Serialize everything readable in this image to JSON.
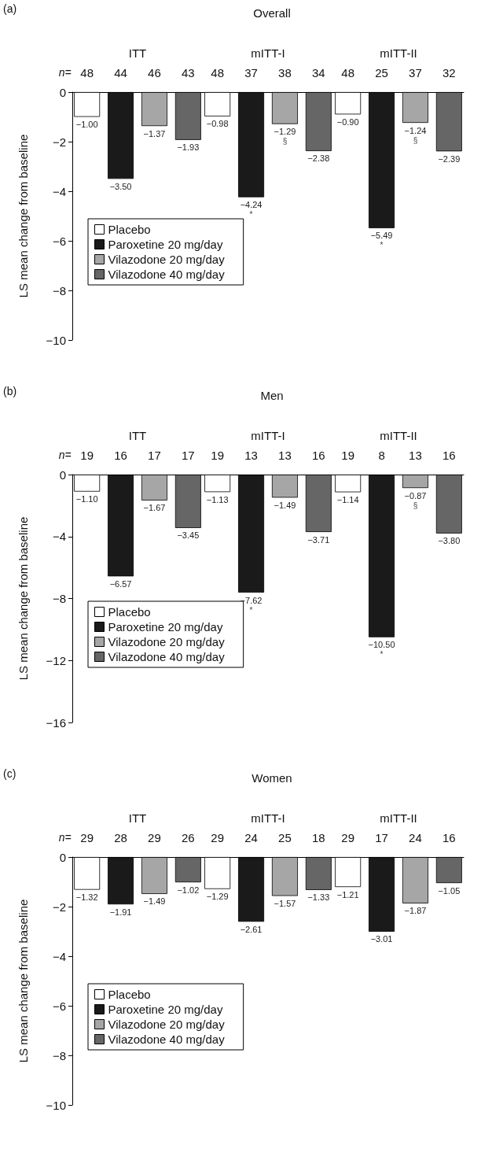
{
  "chart_data": [
    {
      "type": "bar",
      "title": "Overall",
      "ylabel": "LS mean change from baseline",
      "categories": [
        "ITT",
        "mITT-I",
        "mITT-II"
      ],
      "series": [
        {
          "name": "Placebo",
          "color": "#ffffff",
          "values": [
            -1.0,
            -0.98,
            -0.9
          ],
          "value_labels": [
            "−1.00",
            "−0.98",
            "−0.90"
          ]
        },
        {
          "name": "Paroxetine 20 mg/day",
          "color": "#1a1a1a",
          "values": [
            -3.5,
            -4.24,
            -5.49
          ],
          "value_labels": [
            "−3.50",
            "−4.24",
            "−5.49"
          ]
        },
        {
          "name": "Vilazodone 20 mg/day",
          "color": "#a6a6a6",
          "values": [
            -1.37,
            -1.29,
            -1.24
          ],
          "value_labels": [
            "−1.37",
            "−1.29",
            "−1.24"
          ]
        },
        {
          "name": "Vilazodone 40 mg/day",
          "color": "#666666",
          "values": [
            -1.93,
            -2.38,
            -2.39
          ],
          "value_labels": [
            "−1.93",
            "−2.38",
            "−2.39"
          ]
        }
      ],
      "ylim": [
        -10,
        0
      ],
      "yticks": [
        {
          "value": 0,
          "label": "0"
        },
        {
          "value": -2,
          "label": "−2"
        },
        {
          "value": -4,
          "label": "−4"
        },
        {
          "value": -6,
          "label": "−6"
        },
        {
          "value": -8,
          "label": "−8"
        },
        {
          "value": -10,
          "label": "−10"
        }
      ],
      "grid": false,
      "legend": "bottom left",
      "annotations": [
        "(a)",
        "n=",
        "48",
        "44",
        "46",
        "43",
        "48",
        "37",
        "38",
        "34",
        "48",
        "25",
        "37",
        "32",
        "*",
        "§",
        "*",
        "§"
      ]
    },
    {
      "type": "bar",
      "title": "Men",
      "ylabel": "LS mean change from baseline",
      "categories": [
        "ITT",
        "mITT-I",
        "mITT-II"
      ],
      "series": [
        {
          "name": "Placebo",
          "color": "#ffffff",
          "values": [
            -1.1,
            -1.13,
            -1.14
          ],
          "value_labels": [
            "−1.10",
            "−1.13",
            "−1.14"
          ]
        },
        {
          "name": "Paroxetine 20 mg/day",
          "color": "#1a1a1a",
          "values": [
            -6.57,
            -7.62,
            -10.5
          ],
          "value_labels": [
            "−6.57",
            "−7.62",
            "−10.50"
          ]
        },
        {
          "name": "Vilazodone 20 mg/day",
          "color": "#a6a6a6",
          "values": [
            -1.67,
            -1.49,
            -0.87
          ],
          "value_labels": [
            "−1.67",
            "−1.49",
            "−0.87"
          ]
        },
        {
          "name": "Vilazodone 40 mg/day",
          "color": "#666666",
          "values": [
            -3.45,
            -3.71,
            -3.8
          ],
          "value_labels": [
            "−3.45",
            "−3.71",
            "−3.80"
          ]
        }
      ],
      "ylim": [
        -16,
        0
      ],
      "yticks": [
        {
          "value": 0,
          "label": "0"
        },
        {
          "value": -4,
          "label": "−4"
        },
        {
          "value": -8,
          "label": "−8"
        },
        {
          "value": -12,
          "label": "−12"
        },
        {
          "value": -16,
          "label": "−16"
        }
      ],
      "grid": false,
      "legend": "bottom left",
      "annotations": [
        "(b)",
        "n=",
        "19",
        "16",
        "17",
        "17",
        "19",
        "13",
        "13",
        "16",
        "19",
        "8",
        "13",
        "16",
        "*",
        "*",
        "§"
      ]
    },
    {
      "type": "bar",
      "title": "Women",
      "ylabel": "LS mean change from baseline",
      "categories": [
        "ITT",
        "mITT-I",
        "mITT-II"
      ],
      "series": [
        {
          "name": "Placebo",
          "color": "#ffffff",
          "values": [
            -1.32,
            -1.29,
            -1.21
          ],
          "value_labels": [
            "−1.32",
            "−1.29",
            "−1.21"
          ]
        },
        {
          "name": "Paroxetine 20 mg/day",
          "color": "#1a1a1a",
          "values": [
            -1.91,
            -2.61,
            -3.01
          ],
          "value_labels": [
            "−1.91",
            "−2.61",
            "−3.01"
          ]
        },
        {
          "name": "Vilazodone 20 mg/day",
          "color": "#a6a6a6",
          "values": [
            -1.49,
            -1.57,
            -1.87
          ],
          "value_labels": [
            "−1.49",
            "−1.57",
            "−1.87"
          ]
        },
        {
          "name": "Vilazodone 40 mg/day",
          "color": "#666666",
          "values": [
            -1.02,
            -1.33,
            -1.05
          ],
          "value_labels": [
            "−1.02",
            "−1.33",
            "−1.05"
          ]
        }
      ],
      "ylim": [
        -10,
        0
      ],
      "yticks": [
        {
          "value": 0,
          "label": "0"
        },
        {
          "value": -2,
          "label": "−2"
        },
        {
          "value": -4,
          "label": "−4"
        },
        {
          "value": -6,
          "label": "−6"
        },
        {
          "value": -8,
          "label": "−8"
        },
        {
          "value": -10,
          "label": "−10"
        }
      ],
      "grid": false,
      "legend": "bottom left",
      "annotations": [
        "(c)",
        "n=",
        "29",
        "28",
        "29",
        "26",
        "29",
        "24",
        "25",
        "18",
        "29",
        "17",
        "24",
        "16"
      ]
    }
  ]
}
